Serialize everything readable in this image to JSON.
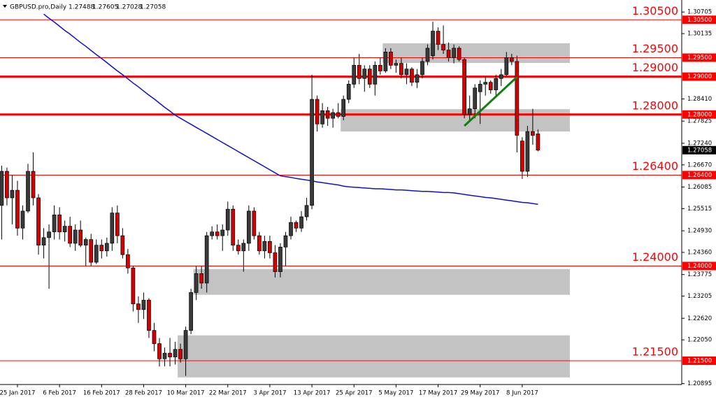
{
  "chart_data": {
    "type": "candlestick",
    "title": "GBPUSD.pro,Daily",
    "categories": [
      null,
      null,
      null,
      "25 Jan 2017",
      null,
      null,
      null,
      null,
      null,
      null,
      null,
      "6 Feb 2017",
      null,
      null,
      null,
      null,
      null,
      null,
      null,
      "16 Feb 2017",
      null,
      null,
      null,
      null,
      null,
      null,
      null,
      "28 Feb 2017",
      null,
      null,
      null,
      null,
      null,
      null,
      null,
      "10 Mar 2017",
      null,
      null,
      null,
      null,
      null,
      null,
      null,
      "22 Mar 2017",
      null,
      null,
      null,
      null,
      null,
      null,
      null,
      "3 Apr 2017",
      null,
      null,
      null,
      null,
      null,
      null,
      null,
      "13 Apr 2017",
      null,
      null,
      null,
      null,
      null,
      null,
      null,
      "25 Apr 2017",
      null,
      null,
      null,
      null,
      null,
      null,
      null,
      "5 May 2017",
      null,
      null,
      null,
      null,
      null,
      null,
      null,
      "17 May 2017",
      null,
      null,
      null,
      null,
      null,
      null,
      null,
      "29 May 2017",
      null,
      null,
      null,
      null,
      null,
      null,
      null,
      "8 Jun 2017",
      null,
      null,
      null
    ],
    "open": [
      1.256,
      1.265,
      1.258,
      1.26,
      1.25,
      1.2545,
      1.265,
      1.258,
      1.2455,
      1.2475,
      1.249,
      1.2535,
      1.249,
      1.2505,
      1.246,
      1.2495,
      1.2455,
      1.247,
      1.241,
      1.2455,
      1.244,
      1.246,
      1.254,
      1.248,
      1.243,
      1.2395,
      1.23,
      1.2285,
      1.231,
      1.223,
      1.2195,
      1.2155,
      1.217,
      1.216,
      1.218,
      1.2155,
      1.223,
      1.233,
      1.238,
      1.2355,
      1.248,
      1.249,
      1.248,
      1.2495,
      1.255,
      1.2455,
      1.244,
      1.246,
      1.2545,
      1.248,
      1.244,
      1.2465,
      1.2435,
      1.2385,
      1.245,
      1.248,
      1.2515,
      1.25,
      1.253,
      1.256,
      1.284,
      1.2775,
      1.281,
      1.279,
      1.2805,
      1.2795,
      1.284,
      1.288,
      1.293,
      1.2895,
      1.292,
      1.288,
      1.293,
      1.2915,
      1.2965,
      1.293,
      1.2935,
      1.2905,
      1.292,
      1.2885,
      1.2905,
      1.294,
      1.2955,
      1.302,
      1.2985,
      1.297,
      1.295,
      1.2975,
      1.2945,
      1.28,
      1.2815,
      1.286,
      1.288,
      1.2885,
      1.2865,
      1.2895,
      1.2905,
      1.295,
      1.294,
      1.273,
      1.265,
      1.2755,
      1.27488
    ],
    "high": [
      1.2665,
      1.266,
      1.264,
      1.2625,
      1.256,
      1.267,
      1.27,
      1.259,
      1.25,
      1.251,
      1.256,
      1.2555,
      1.252,
      1.253,
      1.251,
      1.252,
      1.2475,
      1.2485,
      1.247,
      1.247,
      1.2475,
      1.2555,
      1.256,
      1.25,
      1.2445,
      1.24,
      1.232,
      1.233,
      1.2315,
      1.225,
      1.221,
      1.2185,
      1.221,
      1.22,
      1.2195,
      1.224,
      1.234,
      1.24,
      1.24,
      1.249,
      1.2505,
      1.251,
      1.251,
      1.257,
      1.256,
      1.247,
      1.247,
      1.256,
      1.2555,
      1.249,
      1.248,
      1.248,
      1.2455,
      1.246,
      1.249,
      1.253,
      1.252,
      1.2545,
      1.258,
      1.2905,
      1.285,
      1.283,
      1.282,
      1.2815,
      1.283,
      1.285,
      1.289,
      1.295,
      1.296,
      1.293,
      1.293,
      1.294,
      1.295,
      1.2975,
      1.2975,
      1.2945,
      1.295,
      1.2935,
      1.2925,
      1.292,
      1.295,
      1.2985,
      1.3045,
      1.303,
      1.3035,
      1.299,
      1.2985,
      1.298,
      1.295,
      1.285,
      1.288,
      1.289,
      1.29,
      1.289,
      1.2905,
      1.292,
      1.2965,
      1.296,
      1.2955,
      1.274,
      1.277,
      1.2815,
      1.27605
    ],
    "low": [
      1.247,
      1.256,
      1.251,
      1.248,
      1.247,
      1.254,
      1.256,
      1.243,
      1.242,
      1.234,
      1.247,
      1.247,
      1.2465,
      1.245,
      1.244,
      1.245,
      1.24,
      1.24,
      1.2405,
      1.242,
      1.2425,
      1.244,
      1.246,
      1.242,
      1.238,
      1.228,
      1.225,
      1.226,
      1.221,
      1.2175,
      1.2135,
      1.2135,
      1.2135,
      1.214,
      1.2145,
      1.211,
      1.222,
      1.231,
      1.234,
      1.233,
      1.247,
      1.247,
      1.244,
      1.248,
      1.244,
      1.243,
      1.2385,
      1.244,
      1.247,
      1.243,
      1.242,
      1.242,
      1.237,
      1.237,
      1.24,
      1.247,
      1.249,
      1.249,
      1.252,
      1.255,
      1.2755,
      1.2765,
      1.277,
      1.2765,
      1.279,
      1.2785,
      1.283,
      1.287,
      1.288,
      1.286,
      1.287,
      1.285,
      1.2905,
      1.291,
      1.292,
      1.291,
      1.2895,
      1.288,
      1.2875,
      1.287,
      1.2895,
      1.293,
      1.2945,
      1.297,
      1.296,
      1.294,
      1.2935,
      1.294,
      1.279,
      1.278,
      1.279,
      1.2775,
      1.285,
      1.2855,
      1.285,
      1.2875,
      1.29,
      1.293,
      1.27,
      1.263,
      1.2635,
      1.272,
      1.27028
    ],
    "close": [
      1.265,
      1.258,
      1.26,
      1.25,
      1.2545,
      1.265,
      1.258,
      1.2455,
      1.2475,
      1.249,
      1.2535,
      1.249,
      1.2505,
      1.246,
      1.2495,
      1.2455,
      1.247,
      1.241,
      1.2455,
      1.244,
      1.246,
      1.254,
      1.248,
      1.243,
      1.2395,
      1.23,
      1.2285,
      1.231,
      1.223,
      1.2195,
      1.2155,
      1.217,
      1.216,
      1.218,
      1.2155,
      1.223,
      1.233,
      1.238,
      1.2355,
      1.248,
      1.249,
      1.248,
      1.2495,
      1.255,
      1.2455,
      1.244,
      1.246,
      1.2545,
      1.248,
      1.244,
      1.2465,
      1.2435,
      1.2385,
      1.245,
      1.248,
      1.2515,
      1.25,
      1.253,
      1.256,
      1.284,
      1.2775,
      1.281,
      1.279,
      1.2805,
      1.2795,
      1.284,
      1.288,
      1.293,
      1.2895,
      1.292,
      1.288,
      1.293,
      1.2915,
      1.2965,
      1.293,
      1.2935,
      1.2905,
      1.292,
      1.2885,
      1.2905,
      1.294,
      1.2975,
      1.302,
      1.2985,
      1.297,
      1.295,
      1.2975,
      1.2945,
      1.28,
      1.2815,
      1.287,
      1.288,
      1.2885,
      1.2865,
      1.2895,
      1.2905,
      1.295,
      1.294,
      1.2745,
      1.265,
      1.2755,
      1.2745,
      1.27058
    ],
    "bull_color": "#3a3a3a",
    "bear_color": "#d40000",
    "ma": {
      "color": "#1010c8",
      "values": [
        null,
        null,
        null,
        null,
        null,
        null,
        null,
        null,
        1.3065,
        1.3054,
        1.3044,
        1.3033,
        1.3022,
        1.3012,
        1.3001,
        1.299,
        1.298,
        1.2969,
        1.2958,
        1.2948,
        1.2937,
        1.2926,
        1.2915,
        1.2905,
        1.2894,
        1.2883,
        1.2873,
        1.2862,
        1.2851,
        1.2841,
        1.283,
        1.2819,
        1.2809,
        1.2798,
        1.279,
        1.2782,
        1.2774,
        1.2766,
        1.2758,
        1.275,
        1.2742,
        1.2734,
        1.2726,
        1.2718,
        1.271,
        1.2702,
        1.2694,
        1.2686,
        1.2678,
        1.267,
        1.2662,
        1.2654,
        1.2646,
        1.2638,
        1.2636,
        1.2634,
        1.2631,
        1.2629,
        1.2627,
        1.2625,
        1.2622,
        1.262,
        1.2618,
        1.2616,
        1.2614,
        1.2611,
        1.2609,
        1.2608,
        1.2607,
        1.2606,
        1.2605,
        1.2604,
        1.2604,
        1.2603,
        1.2602,
        1.2601,
        1.2601,
        1.26,
        1.2599,
        1.2598,
        1.2597,
        1.2597,
        1.2596,
        1.2595,
        1.2594,
        1.2594,
        1.2593,
        1.2591,
        1.2589,
        1.2587,
        1.2585,
        1.2583,
        1.2581,
        1.258,
        1.2578,
        1.2576,
        1.2574,
        1.2572,
        1.257,
        1.2568,
        1.2567,
        1.2565,
        1.2563
      ]
    },
    "levels": [
      {
        "value": 1.305,
        "label": "1.30500",
        "thick": false
      },
      {
        "value": 1.295,
        "label": "1.29500",
        "thick": false
      },
      {
        "value": 1.29,
        "label": "1.29000",
        "thick": true
      },
      {
        "value": 1.28,
        "label": "1.28000",
        "thick": true
      },
      {
        "value": 1.264,
        "label": "1.26400",
        "thick": false
      },
      {
        "value": 1.24,
        "label": "1.24000",
        "thick": false
      },
      {
        "value": 1.215,
        "label": "1.21500",
        "thick": false
      }
    ],
    "level_color": "#ff0000",
    "zones": [
      {
        "start": 73,
        "high": 1.2988,
        "low": 1.2936
      },
      {
        "start": 65,
        "high": 1.2814,
        "low": 1.2755
      },
      {
        "start": 37,
        "high": 1.2392,
        "low": 1.2324
      },
      {
        "start": 34,
        "high": 1.2217,
        "low": 1.2106
      }
    ],
    "zone_color": "#c3c3c3",
    "trendline": {
      "start": 88,
      "end": 98,
      "from": 1.277,
      "to": 1.2899,
      "color": "#108010"
    },
    "ylim": [
      1.2089,
      1.3093
    ],
    "yticks": [
      1.30705,
      1.30135,
      {
        "value": 1.2841,
        "label": "1.28410"
      },
      1.27825,
      {
        "value": 1.2724,
        "label": "1.27240"
      },
      {
        "value": 1.2667,
        "label": "1.26670"
      },
      1.26085,
      1.25515,
      {
        "value": 1.2493,
        "label": "1.24930"
      },
      {
        "value": 1.2436,
        "label": "1.24360"
      },
      1.23775,
      1.23205,
      {
        "value": 1.2262,
        "label": "1.22620"
      },
      {
        "value": 1.2205,
        "label": "1.22050"
      },
      1.20895
    ]
  }
}
